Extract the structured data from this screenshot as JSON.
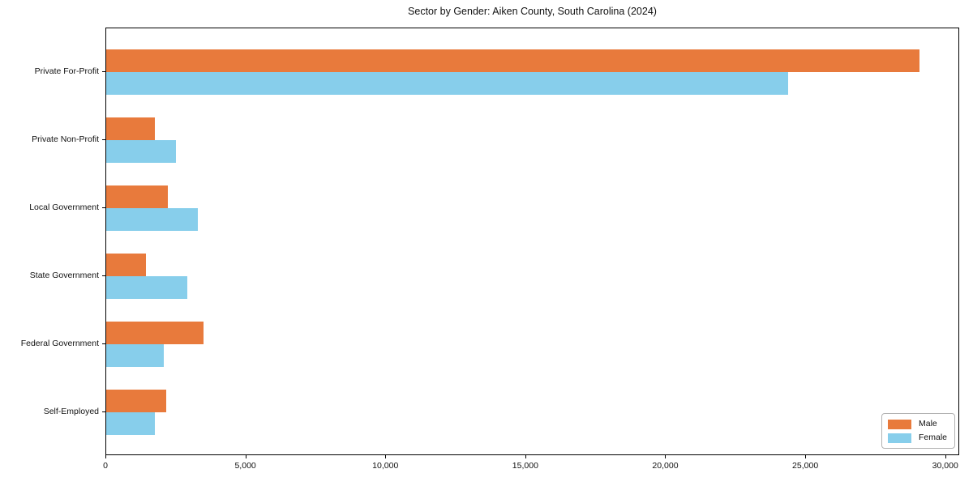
{
  "chart_data": {
    "type": "bar",
    "orientation": "horizontal",
    "title": "Sector by Gender: Aiken County, South Carolina (2024)",
    "categories": [
      "Private For-Profit",
      "Private Non-Profit",
      "Local Government",
      "State Government",
      "Federal Government",
      "Self-Employed"
    ],
    "series": [
      {
        "name": "Male",
        "color": "#E87A3C",
        "values": [
          29100,
          1750,
          2200,
          1430,
          3480,
          2160
        ]
      },
      {
        "name": "Female",
        "color": "#87CEEB",
        "values": [
          24400,
          2500,
          3280,
          2900,
          2070,
          1750
        ]
      }
    ],
    "xlabel": "",
    "ylabel": "",
    "xlim": [
      0,
      30500
    ],
    "x_ticks": [
      0,
      5000,
      10000,
      15000,
      20000,
      25000,
      30000
    ],
    "x_tick_labels": [
      "0",
      "5,000",
      "10,000",
      "15,000",
      "20,000",
      "25,000",
      "30,000"
    ],
    "grid": false,
    "legend": {
      "position": "lower-right",
      "entries": [
        "Male",
        "Female"
      ]
    }
  }
}
